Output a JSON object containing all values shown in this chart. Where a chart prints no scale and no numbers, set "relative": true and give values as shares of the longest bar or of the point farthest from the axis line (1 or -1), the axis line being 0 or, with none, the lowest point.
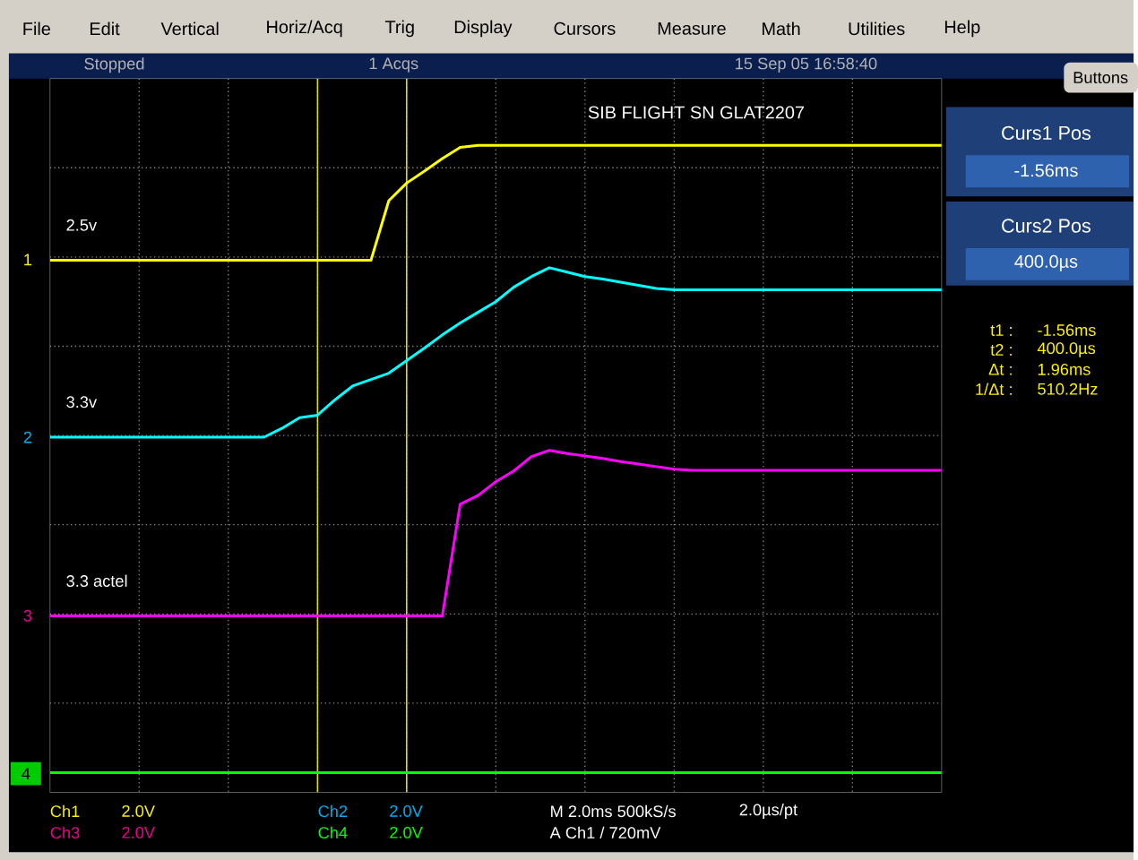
{
  "chart_data": {
    "type": "line",
    "title": "SIB FLIGHT SN GLAT2207",
    "relative": true,
    "grid": true,
    "marker": "none",
    "line_style": "solid",
    "categories": [
      null,
      null,
      null,
      null,
      null,
      null,
      null,
      null,
      null,
      null,
      null,
      null,
      null,
      null,
      null,
      null,
      null,
      null,
      null,
      null,
      null,
      null,
      null,
      null,
      null,
      null,
      null,
      null,
      null,
      null,
      null,
      null,
      null,
      null,
      null,
      null,
      null,
      null,
      null,
      null,
      null,
      null,
      null,
      null,
      null,
      null,
      null,
      null,
      null,
      null,
      null
    ],
    "series": [
      {
        "name": "2.5v",
        "color": "#ffff00",
        "values": [
          0.817,
          0.817,
          0.817,
          0.817,
          0.817,
          0.817,
          0.817,
          0.817,
          0.817,
          0.817,
          0.817,
          0.817,
          0.817,
          0.817,
          0.817,
          0.817,
          0.817,
          0.817,
          0.817,
          0.912,
          0.94,
          0.959,
          0.979,
          0.997,
          1.0,
          1.0,
          1.0,
          1.0,
          1.0,
          1.0,
          1.0,
          1.0,
          1.0,
          1.0,
          1.0,
          1.0,
          1.0,
          1.0,
          1.0,
          1.0,
          1.0,
          1.0,
          1.0,
          1.0,
          1.0,
          1.0,
          1.0,
          1.0,
          1.0,
          1.0,
          1.0
        ]
      },
      {
        "name": "3.3v",
        "color": "#00ffff",
        "values": [
          0.535,
          0.535,
          0.535,
          0.535,
          0.535,
          0.535,
          0.535,
          0.535,
          0.535,
          0.535,
          0.535,
          0.535,
          0.535,
          0.549,
          0.566,
          0.57,
          0.595,
          0.617,
          0.627,
          0.637,
          0.657,
          0.677,
          0.698,
          0.717,
          0.734,
          0.751,
          0.774,
          0.791,
          0.805,
          0.798,
          0.791,
          0.787,
          0.782,
          0.777,
          0.772,
          0.77,
          0.77,
          0.77,
          0.77,
          0.77,
          0.77,
          0.77,
          0.77,
          0.77,
          0.77,
          0.77,
          0.77,
          0.77,
          0.77,
          0.77,
          0.77
        ]
      },
      {
        "name": "3.3 actel",
        "color": "#ff00ff",
        "values": [
          0.25,
          0.25,
          0.25,
          0.25,
          0.25,
          0.25,
          0.25,
          0.25,
          0.25,
          0.25,
          0.25,
          0.25,
          0.25,
          0.25,
          0.25,
          0.25,
          0.25,
          0.25,
          0.25,
          0.25,
          0.25,
          0.25,
          0.25,
          0.428,
          0.442,
          0.464,
          0.481,
          0.504,
          0.514,
          0.509,
          0.505,
          0.501,
          0.496,
          0.492,
          0.488,
          0.484,
          0.482,
          0.482,
          0.482,
          0.482,
          0.482,
          0.482,
          0.482,
          0.482,
          0.482,
          0.482,
          0.482,
          0.482,
          0.482,
          0.482,
          0.482
        ]
      },
      {
        "color": "#00ff00",
        "values": [
          0,
          0,
          0,
          0,
          0,
          0,
          0,
          0,
          0,
          0,
          0,
          0,
          0,
          0,
          0,
          0,
          0,
          0,
          0,
          0,
          0,
          0,
          0,
          0,
          0,
          0,
          0,
          0,
          0,
          0,
          0,
          0,
          0,
          0,
          0,
          0,
          0,
          0,
          0,
          0,
          0,
          0,
          0,
          0,
          0,
          0,
          0,
          0,
          0,
          0,
          0
        ]
      }
    ],
    "annotations": [
      "File",
      "Edit",
      "Vertical",
      "Horiz/Acq",
      "Trig",
      "Display",
      "Cursors",
      "Measure",
      "Math",
      "Utilities",
      "Help",
      "Stopped",
      "1 Acqs",
      "15 Sep 05 16:58:40",
      "Buttons",
      "Curs1 Pos",
      "-1.56ms",
      "Curs2 Pos",
      "400.0µs",
      "t1 :",
      "-1.56ms",
      "t2 :",
      "400.0µs",
      "Δt :",
      "1.96ms",
      "1/Δt :",
      "510.2Hz",
      "Ch1",
      "2.0V",
      "Ch3",
      "2.0V",
      "Ch2",
      "2.0V",
      "Ch4",
      "2.0V",
      "M 2.0ms 500kS/s",
      "2.0µs/pt",
      "A Ch1 / 720mV",
      "1",
      "2",
      "3",
      "4"
    ]
  }
}
